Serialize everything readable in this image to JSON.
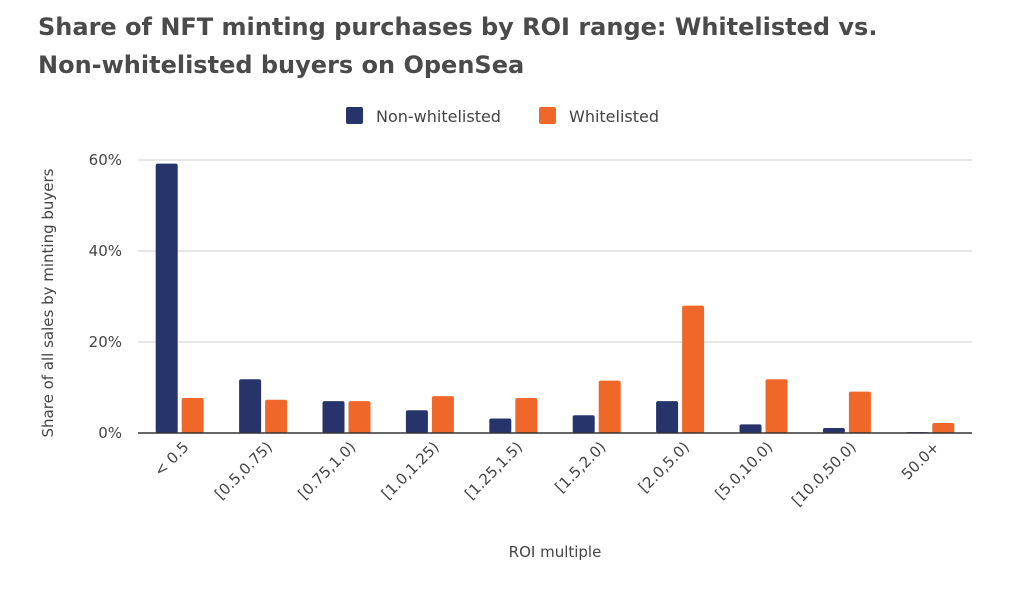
{
  "title_lines": [
    "Share of NFT minting purchases by ROI range: Whitelisted vs.",
    "Non-whitelisted buyers on OpenSea"
  ],
  "chart_data": {
    "type": "bar",
    "title": "Share of NFT minting purchases by ROI range: Whitelisted vs. Non-whitelisted buyers on OpenSea",
    "xlabel": "ROI multiple",
    "ylabel": "Share of all sales by minting buyers",
    "categories": [
      "< 0.5",
      "[0.5,0.75)",
      "[0.75,1.0)",
      "[1.0,1.25)",
      "[1.25,1.5)",
      "[1.5,2.0)",
      "[2.0,5.0)",
      "[5.0,10.0)",
      "[10.0,50.0)",
      "50.0+"
    ],
    "series": [
      {
        "name": "Non-whitelisted",
        "color": "#26346b",
        "values": [
          59.2,
          11.8,
          7.0,
          5.0,
          3.2,
          3.9,
          7.0,
          1.9,
          1.1,
          0.2
        ]
      },
      {
        "name": "Whitelisted",
        "color": "#f0672a",
        "values": [
          7.7,
          7.3,
          7.0,
          8.1,
          7.7,
          11.5,
          28.0,
          11.8,
          9.1,
          2.2
        ]
      }
    ],
    "ylim": [
      0,
      60
    ],
    "yticks": [
      0,
      20,
      40,
      60
    ],
    "ytick_labels": [
      "0%",
      "20%",
      "40%",
      "60%"
    ],
    "grid": true,
    "legend_position": "top-center"
  }
}
